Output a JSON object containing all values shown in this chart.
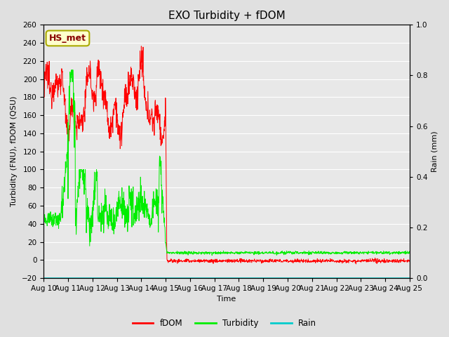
{
  "title": "EXO Turbidity + fDOM",
  "xlabel": "Time",
  "ylabel_left": "Turbidity (FNU), fDOM (QSU)",
  "ylabel_right": "Rain (mm)",
  "ylim_left": [
    -20,
    260
  ],
  "ylim_right": [
    0.0,
    1.0
  ],
  "yticks_left": [
    -20,
    0,
    20,
    40,
    60,
    80,
    100,
    120,
    140,
    160,
    180,
    200,
    220,
    240,
    260
  ],
  "yticks_right": [
    0.0,
    0.2,
    0.4,
    0.6,
    0.8,
    1.0
  ],
  "xtick_labels": [
    "Aug 10",
    "Aug 11",
    "Aug 12",
    "Aug 13",
    "Aug 14",
    "Aug 15",
    "Aug 16",
    "Aug 17",
    "Aug 18",
    "Aug 19",
    "Aug 20",
    "Aug 21",
    "Aug 22",
    "Aug 23",
    "Aug 24",
    "Aug 25"
  ],
  "bg_color": "#e0e0e0",
  "plot_bg_color": "#e8e8e8",
  "annotation_label": "HS_met",
  "annotation_color": "#880000",
  "annotation_bg": "#ffffcc",
  "annotation_border": "#aaaa00",
  "fdom_color": "#ff0000",
  "turbidity_color": "#00ee00",
  "rain_color": "#00cccc",
  "legend_fdom": "fDOM",
  "legend_turbidity": "Turbidity",
  "legend_rain": "Rain",
  "grid_color": "#ffffff",
  "title_fontsize": 11,
  "label_fontsize": 8,
  "tick_fontsize": 7.5,
  "legend_fontsize": 8.5
}
